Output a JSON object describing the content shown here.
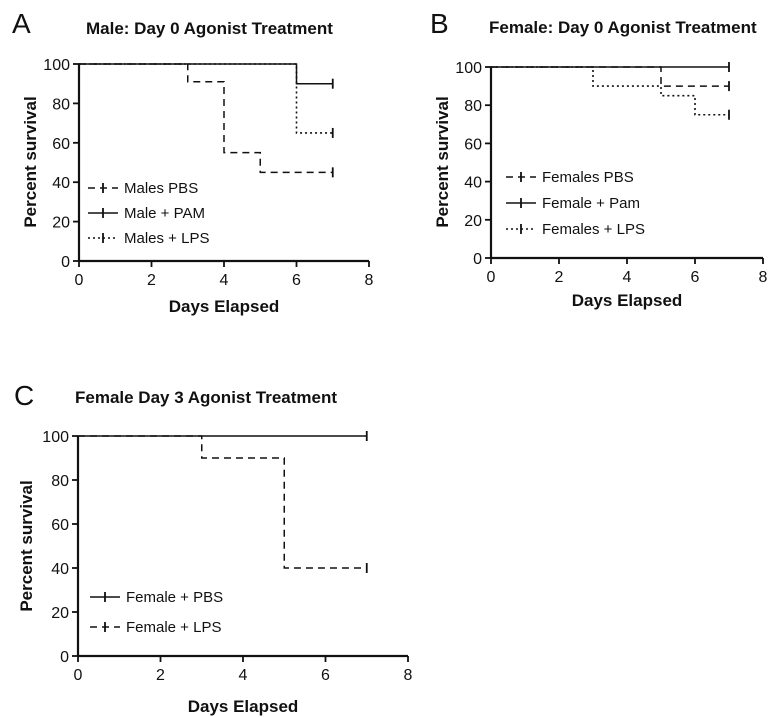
{
  "chart_data": [
    {
      "type": "line",
      "subtype": "kaplan-meier step",
      "panel_label": "A",
      "title": "Male: Day 0 Agonist Treatment",
      "xlabel": "Days Elapsed",
      "ylabel": "Percent survival",
      "xlim": [
        0,
        8
      ],
      "ylim": [
        0,
        100
      ],
      "xticks": [
        0,
        2,
        4,
        6,
        8
      ],
      "yticks": [
        0,
        20,
        40,
        60,
        80,
        100
      ],
      "legend_position": "bottom-left",
      "series": [
        {
          "name": "Males PBS",
          "style": "dashed",
          "x": [
            0,
            3,
            4,
            5,
            7
          ],
          "y": [
            100,
            91,
            55,
            45,
            45
          ],
          "end_x": 7
        },
        {
          "name": "Male + PAM",
          "style": "solid",
          "x": [
            0,
            6,
            7
          ],
          "y": [
            100,
            90,
            90
          ],
          "end_x": 7
        },
        {
          "name": "Males + LPS",
          "style": "dotted",
          "x": [
            0,
            6,
            7
          ],
          "y": [
            100,
            65,
            65
          ],
          "end_x": 7
        }
      ]
    },
    {
      "type": "line",
      "subtype": "kaplan-meier step",
      "panel_label": "B",
      "title": "Female:  Day 0 Agonist Treatment",
      "xlabel": "Days Elapsed",
      "ylabel": "Percent survival",
      "xlim": [
        0,
        8
      ],
      "ylim": [
        0,
        100
      ],
      "xticks": [
        0,
        2,
        4,
        6,
        8
      ],
      "yticks": [
        0,
        20,
        40,
        60,
        80,
        100
      ],
      "legend_position": "bottom-left",
      "series": [
        {
          "name": "Females PBS",
          "style": "dashed",
          "x": [
            0,
            5,
            7
          ],
          "y": [
            100,
            90,
            90
          ],
          "end_x": 7
        },
        {
          "name": "Female + Pam",
          "style": "solid",
          "x": [
            0,
            7
          ],
          "y": [
            100,
            100
          ],
          "end_x": 7
        },
        {
          "name": "Females + LPS",
          "style": "dotted",
          "x": [
            0,
            3,
            5,
            6,
            7
          ],
          "y": [
            100,
            90,
            85,
            75,
            75
          ],
          "end_x": 7
        }
      ]
    },
    {
      "type": "line",
      "subtype": "kaplan-meier step",
      "panel_label": "C",
      "title": "Female Day 3  Agonist Treatment",
      "xlabel": "Days Elapsed",
      "ylabel": "Percent survival",
      "xlim": [
        0,
        8
      ],
      "ylim": [
        0,
        100
      ],
      "xticks": [
        0,
        2,
        4,
        6,
        8
      ],
      "yticks": [
        0,
        20,
        40,
        60,
        80,
        100
      ],
      "legend_position": "bottom-left",
      "series": [
        {
          "name": "Female + PBS",
          "style": "solid",
          "x": [
            0,
            7
          ],
          "y": [
            100,
            100
          ],
          "end_x": 7
        },
        {
          "name": "Female + LPS",
          "style": "dashed",
          "x": [
            0,
            3,
            5,
            7
          ],
          "y": [
            100,
            90,
            40,
            40
          ],
          "end_x": 7
        }
      ]
    }
  ]
}
